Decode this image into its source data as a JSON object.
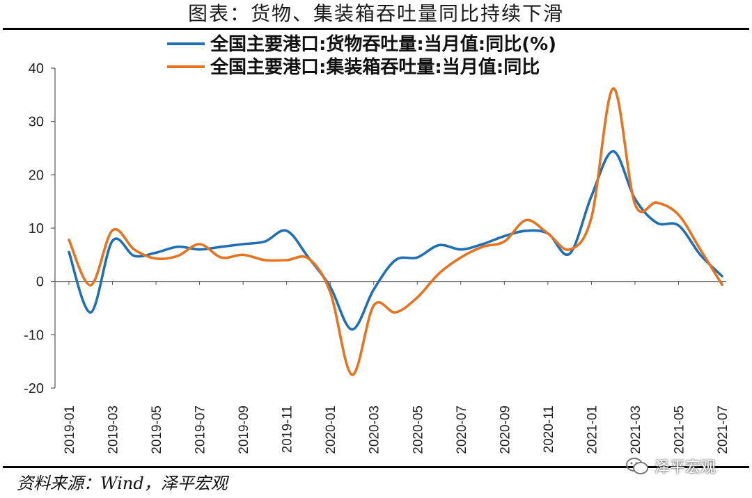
{
  "header": {
    "title": "图表：货物、集装箱吞吐量同比持续下滑"
  },
  "footer": {
    "source": "资料来源：Wind，泽平宏观",
    "watermark": "泽平宏观"
  },
  "chart_data": {
    "type": "line",
    "title": "图表：货物、集装箱吞吐量同比持续下滑",
    "ylim": [
      -20,
      40
    ],
    "yticks": [
      -20,
      -10,
      0,
      10,
      20,
      30,
      40
    ],
    "grid": false,
    "legend_position": "top",
    "x": [
      "2019-01",
      "2019-02",
      "2019-03",
      "2019-04",
      "2019-05",
      "2019-06",
      "2019-07",
      "2019-08",
      "2019-09",
      "2019-10",
      "2019-11",
      "2019-12",
      "2020-01",
      "2020-02",
      "2020-03",
      "2020-04",
      "2020-05",
      "2020-06",
      "2020-07",
      "2020-08",
      "2020-09",
      "2020-10",
      "2020-11",
      "2020-12",
      "2021-01",
      "2021-02",
      "2021-03",
      "2021-04",
      "2021-05",
      "2021-06",
      "2021-07"
    ],
    "xtick_labels": [
      "2019-01",
      "2019-03",
      "2019-05",
      "2019-07",
      "2019-09",
      "2019-11",
      "2020-01",
      "2020-03",
      "2020-05",
      "2020-07",
      "2020-09",
      "2020-11",
      "2021-01",
      "2021-03",
      "2021-05",
      "2021-07"
    ],
    "series": [
      {
        "name": "全国主要港口:货物吞吐量:当月值:同比(%)",
        "color": "#1f6fb5",
        "values": [
          5.5,
          -5.8,
          7.6,
          4.8,
          5.4,
          6.5,
          6.0,
          6.5,
          7.0,
          7.5,
          9.5,
          4.5,
          -1.0,
          -9.0,
          -1.5,
          4.0,
          4.5,
          6.8,
          6.0,
          7.0,
          8.5,
          9.5,
          9.0,
          5.2,
          16.0,
          24.4,
          15.5,
          11.0,
          10.5,
          5.0,
          1.0
        ]
      },
      {
        "name": "全国主要港口:集装箱吞吐量:当月值:同比",
        "color": "#e8731f",
        "values": [
          7.8,
          -0.7,
          9.6,
          6.0,
          4.3,
          4.8,
          7.0,
          4.5,
          5.0,
          4.0,
          4.0,
          4.3,
          -2.0,
          -17.5,
          -4.5,
          -5.8,
          -3.0,
          1.5,
          4.5,
          6.5,
          7.5,
          11.5,
          9.0,
          6.0,
          12.0,
          36.2,
          14.5,
          14.8,
          12.5,
          6.0,
          -0.6
        ]
      }
    ]
  }
}
